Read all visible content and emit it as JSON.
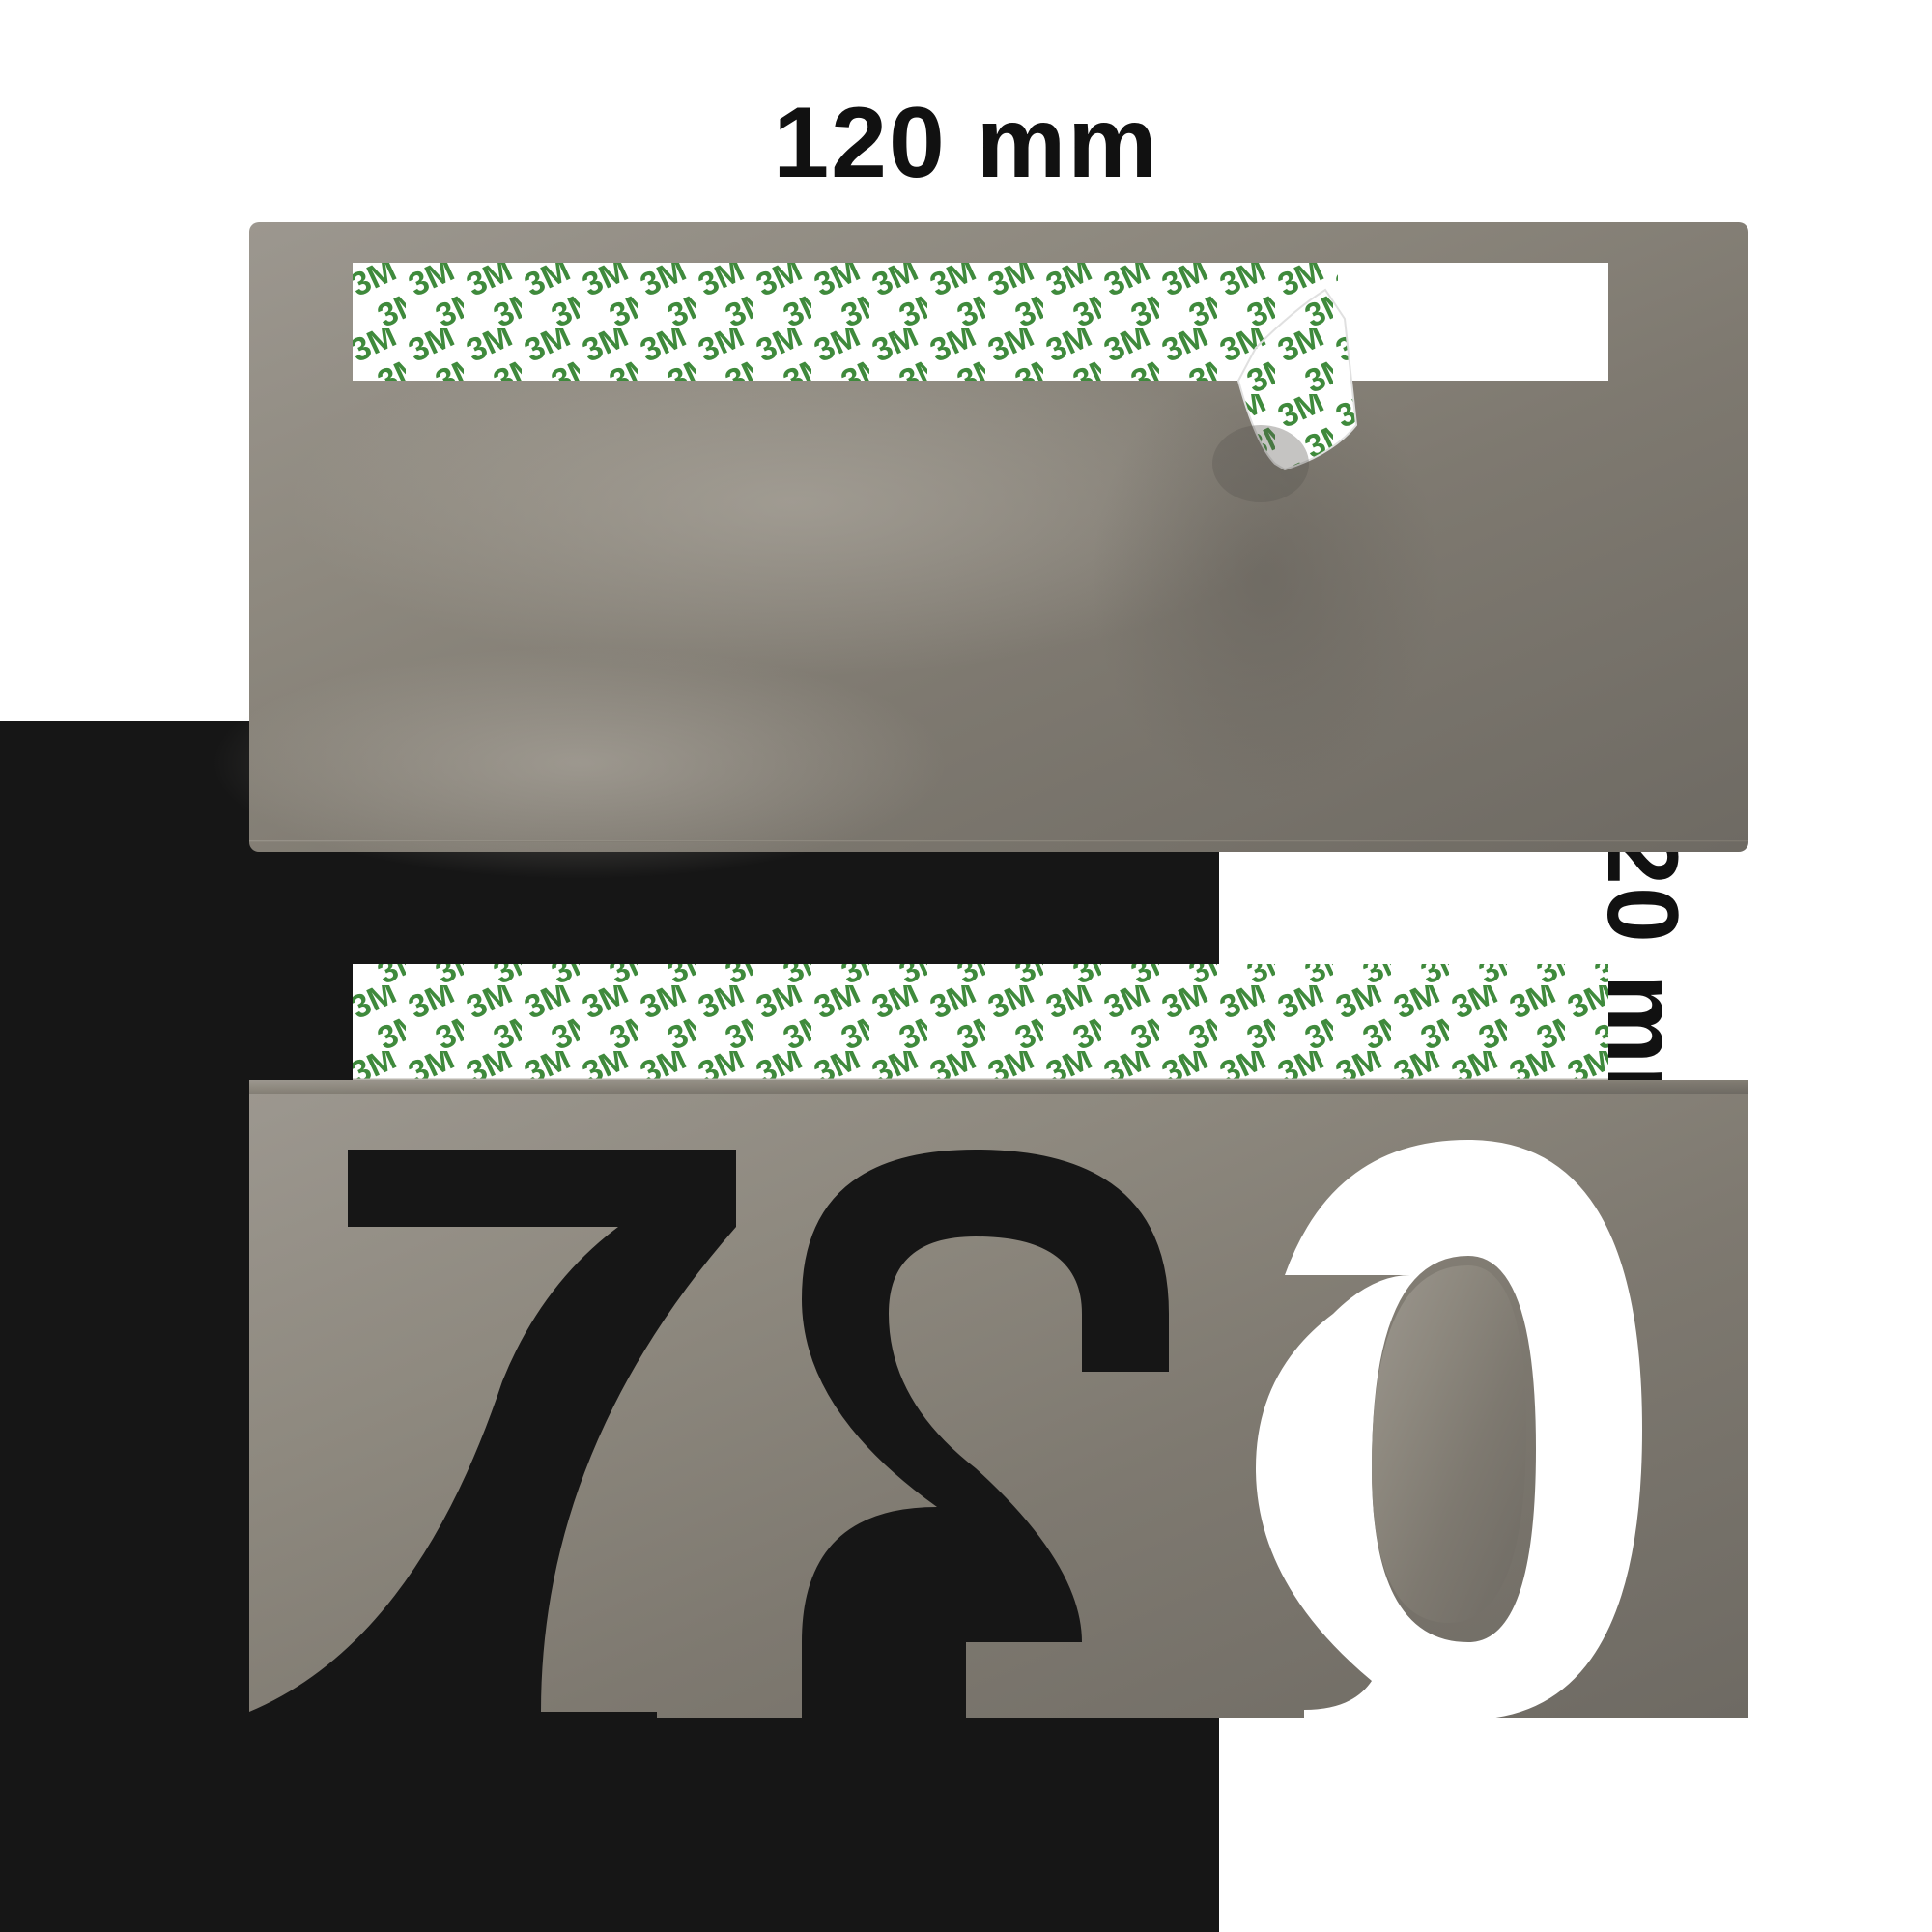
{
  "dimensions": {
    "width_label": "120 mm",
    "height_label": "120 mm"
  },
  "plate": {
    "digits": "627",
    "digit_order_in_image": [
      "6",
      "2",
      "7"
    ],
    "mirrored": true,
    "surface_color": "#8d8880"
  },
  "tape": {
    "brand_text": "3M",
    "brand_color": "#3f8a3c",
    "backing_color": "#ffffff"
  },
  "colors": {
    "background_dark": "#161616",
    "background_light": "#ffffff"
  }
}
